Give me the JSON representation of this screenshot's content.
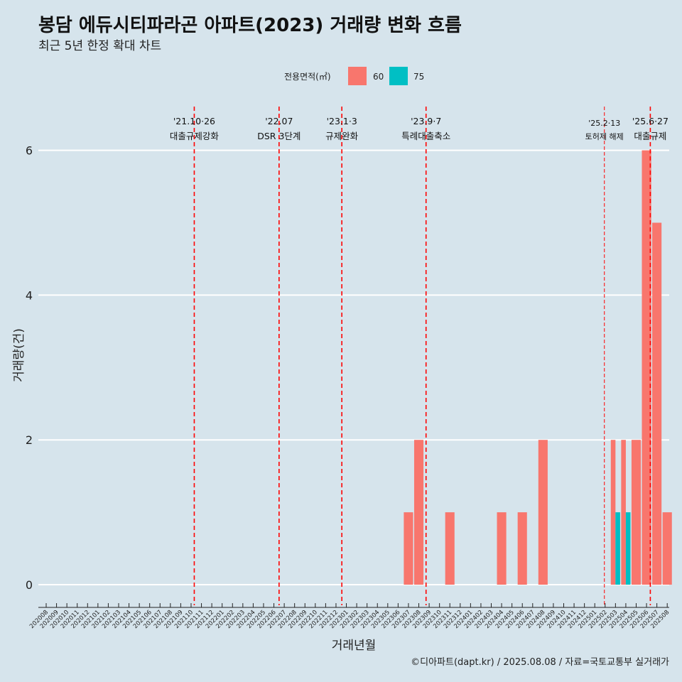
{
  "chart_data": {
    "type": "bar",
    "title": "봉담 에듀시티파라곤 아파트(2023) 거래량 변화 흐름",
    "subtitle": "최근 5년 한정 확대 차트",
    "xlabel": "거래년월",
    "ylabel": "거래량(건)",
    "caption": "©디아파트(dapt.kr) / 2025.08.08 / 자료=국토교통부 실거래가",
    "legend_title": "전용면적(㎡)",
    "legend_position": "top",
    "ylim": [
      0,
      6.6
    ],
    "yticks": [
      0,
      2,
      4,
      6
    ],
    "categories": [
      "202008",
      "202009",
      "202010",
      "202011",
      "202012",
      "202101",
      "202102",
      "202103",
      "202104",
      "202105",
      "202106",
      "202107",
      "202108",
      "202109",
      "202110",
      "202111",
      "202112",
      "202201",
      "202202",
      "202203",
      "202204",
      "202205",
      "202206",
      "202207",
      "202208",
      "202209",
      "202210",
      "202211",
      "202212",
      "202301",
      "202302",
      "202303",
      "202304",
      "202305",
      "202306",
      "202307",
      "202308",
      "202309",
      "202310",
      "202311",
      "202312",
      "202401",
      "202402",
      "202403",
      "202404",
      "202405",
      "202406",
      "202407",
      "202408",
      "202409",
      "202410",
      "202411",
      "202412",
      "202501",
      "202502",
      "202503",
      "202504",
      "202505",
      "202506",
      "202507",
      "202508"
    ],
    "series": [
      {
        "name": "60",
        "color": "#f8766d",
        "values": [
          {
            "x": "202307",
            "y": 1
          },
          {
            "x": "202308",
            "y": 2
          },
          {
            "x": "202311",
            "y": 1
          },
          {
            "x": "202404",
            "y": 1
          },
          {
            "x": "202406",
            "y": 1
          },
          {
            "x": "202408",
            "y": 2
          },
          {
            "x": "202503",
            "y": 2
          },
          {
            "x": "202504",
            "y": 2
          },
          {
            "x": "202505",
            "y": 2
          },
          {
            "x": "202506",
            "y": 6
          },
          {
            "x": "202507",
            "y": 5
          },
          {
            "x": "202508",
            "y": 1
          }
        ]
      },
      {
        "name": "75",
        "color": "#00bfc4",
        "values": [
          {
            "x": "202503",
            "y": 1
          },
          {
            "x": "202504",
            "y": 1
          }
        ]
      }
    ],
    "annotations": [
      {
        "x": "2021-10-26",
        "line1": "'21.10·26",
        "line2": "대출규제강화"
      },
      {
        "x": "2022-07-01",
        "line1": "'22.07",
        "line2": "DSR 3단계"
      },
      {
        "x": "2023-01-03",
        "line1": "'23.1·3",
        "line2": "규제완화"
      },
      {
        "x": "2023-09-07",
        "line1": "'23.9·7",
        "line2": "특례대출축소"
      },
      {
        "x": "2025-02-13",
        "line1": "'25.2·13",
        "line2": "토허제 해제"
      },
      {
        "x": "2025-06-27",
        "line1": "'25.6·27",
        "line2": "대출규제"
      }
    ]
  }
}
